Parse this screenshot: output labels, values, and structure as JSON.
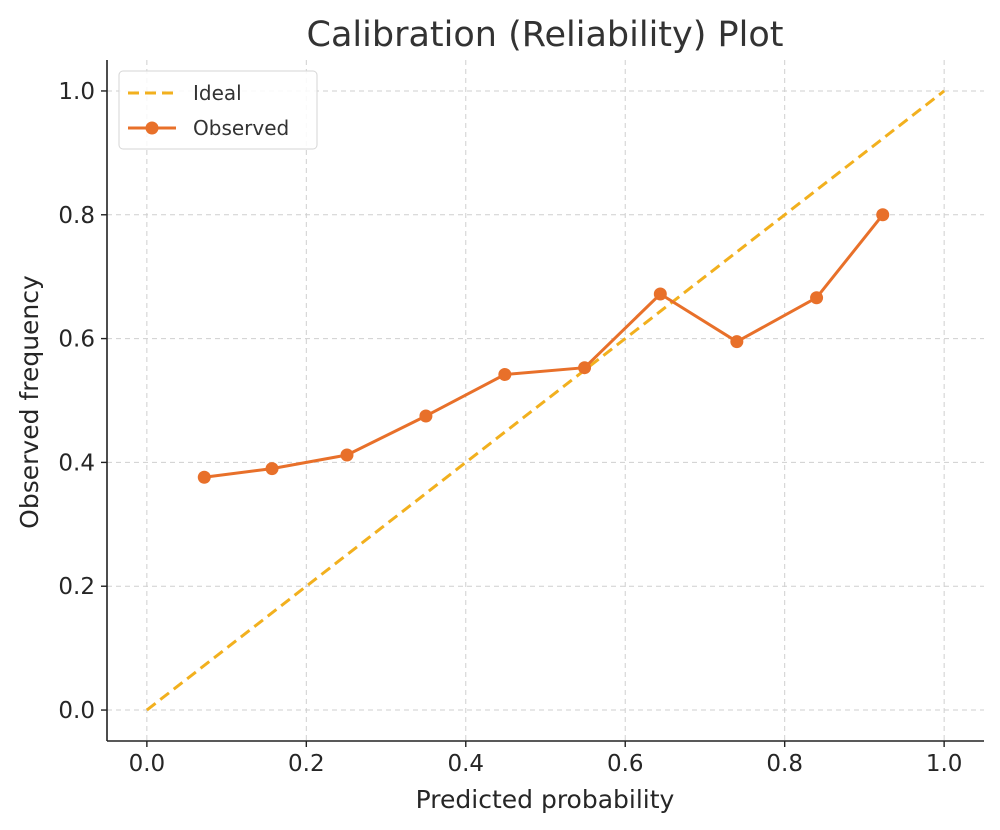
{
  "chart_data": {
    "type": "line",
    "title": "Calibration (Reliability) Plot",
    "xlabel": "Predicted probability",
    "ylabel": "Observed frequency",
    "xlim": [
      -0.05,
      1.05
    ],
    "ylim": [
      -0.05,
      1.05
    ],
    "xticks": [
      0.0,
      0.2,
      0.4,
      0.6,
      0.8,
      1.0
    ],
    "yticks": [
      0.0,
      0.2,
      0.4,
      0.6,
      0.8,
      1.0
    ],
    "xtick_labels": [
      "0.0",
      "0.2",
      "0.4",
      "0.6",
      "0.8",
      "1.0"
    ],
    "ytick_labels": [
      "0.0",
      "0.2",
      "0.4",
      "0.6",
      "0.8",
      "1.0"
    ],
    "grid": true,
    "legend_position": "top-left",
    "series": [
      {
        "name": "Ideal",
        "style": "dashed",
        "color": "#f2b01e",
        "x": [
          0.0,
          1.0
        ],
        "y": [
          0.0,
          1.0
        ]
      },
      {
        "name": "Observed",
        "style": "solid-with-markers",
        "color": "#e8702a",
        "x": [
          0.072,
          0.157,
          0.251,
          0.35,
          0.449,
          0.549,
          0.644,
          0.74,
          0.84,
          0.923
        ],
        "y": [
          0.376,
          0.39,
          0.412,
          0.475,
          0.542,
          0.553,
          0.672,
          0.595,
          0.666,
          0.8
        ]
      }
    ]
  }
}
